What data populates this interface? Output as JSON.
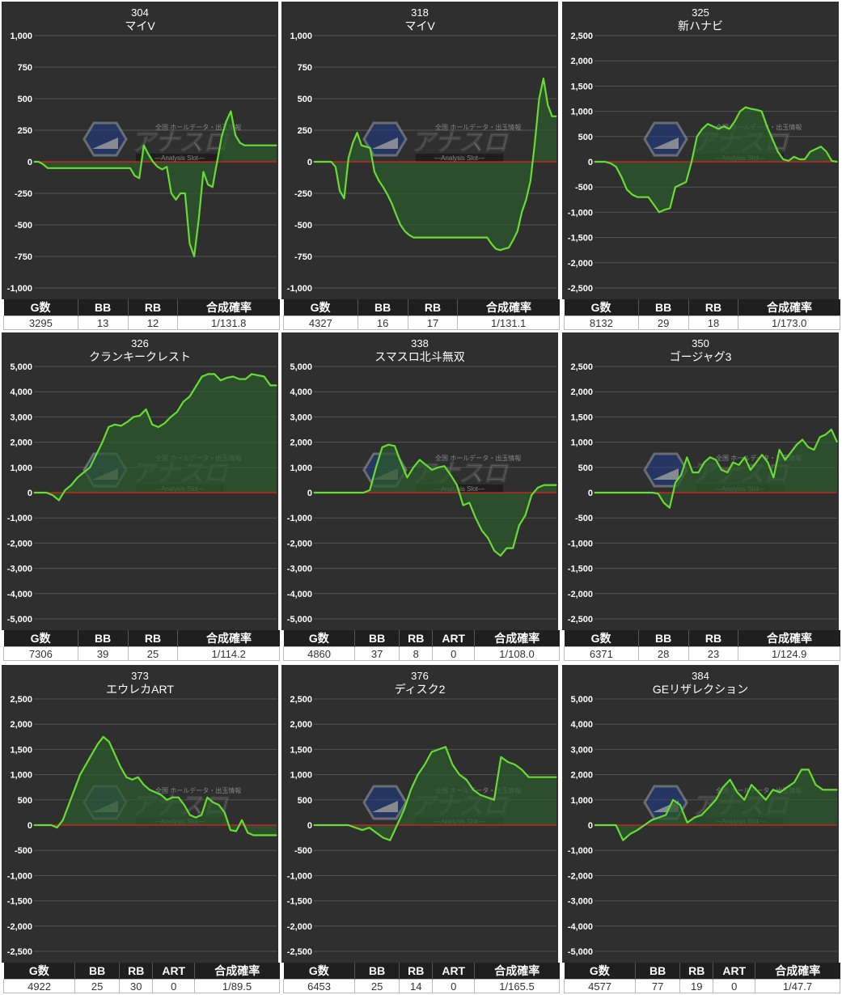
{
  "colors": {
    "panel_bg": "#2f2f2f",
    "grid": "#555555",
    "zero_line": "#e02020",
    "series_line": "#66dd33",
    "series_fill": "#2e5a2e",
    "tick_text": "#ffffff",
    "header_bg": "#1f1f1f"
  },
  "watermark": {
    "brand": "アナスロ",
    "tagline": "—Analysis Slot—",
    "small": "全国 ホールデータ・出玉情報"
  },
  "chart_data": [
    {
      "type": "area",
      "title": "304",
      "subtitle": "マイV",
      "ylim": [
        -1000,
        1000
      ],
      "yticks": [
        -1000,
        -750,
        -500,
        -250,
        0,
        250,
        500,
        750,
        1000
      ],
      "ytick_labels": [
        "-1,000",
        "-750",
        "-500",
        "-250",
        "0",
        "250",
        "500",
        "750",
        "1,000"
      ],
      "values": [
        0,
        0,
        -20,
        -50,
        -50,
        -50,
        -50,
        -50,
        -50,
        -50,
        -50,
        -50,
        -50,
        -50,
        -50,
        -50,
        -50,
        -50,
        -50,
        -50,
        -50,
        -50,
        -110,
        -130,
        130,
        60,
        0,
        -40,
        -60,
        -40,
        -250,
        -300,
        -250,
        -250,
        -650,
        -750,
        -450,
        -80,
        -180,
        -200,
        0,
        200,
        320,
        400,
        210,
        150,
        130,
        130,
        130,
        130,
        130,
        130,
        130,
        130
      ],
      "stats": {
        "headers": [
          "G数",
          "BB",
          "RB",
          "合成確率"
        ],
        "values": [
          "3295",
          "13",
          "12",
          "1/131.8"
        ]
      }
    },
    {
      "type": "area",
      "title": "318",
      "subtitle": "マイV",
      "ylim": [
        -1000,
        1000
      ],
      "yticks": [
        -1000,
        -750,
        -500,
        -250,
        0,
        250,
        500,
        750,
        1000
      ],
      "ytick_labels": [
        "-1,000",
        "-750",
        "-500",
        "-250",
        "0",
        "250",
        "500",
        "750",
        "1,000"
      ],
      "values": [
        0,
        0,
        0,
        0,
        0,
        -40,
        -230,
        -290,
        30,
        150,
        230,
        130,
        120,
        110,
        -80,
        -150,
        -200,
        -260,
        -330,
        -420,
        -500,
        -550,
        -580,
        -600,
        -600,
        -600,
        -600,
        -600,
        -600,
        -600,
        -600,
        -600,
        -600,
        -600,
        -600,
        -600,
        -600,
        -600,
        -600,
        -600,
        -600,
        -650,
        -690,
        -700,
        -690,
        -680,
        -620,
        -550,
        -400,
        -300,
        -150,
        150,
        500,
        660,
        450,
        360,
        360
      ],
      "stats": {
        "headers": [
          "G数",
          "BB",
          "RB",
          "合成確率"
        ],
        "values": [
          "4327",
          "16",
          "17",
          "1/131.1"
        ]
      }
    },
    {
      "type": "area",
      "title": "325",
      "subtitle": "新ハナビ",
      "ylim": [
        -2500,
        2500
      ],
      "yticks": [
        -2500,
        -2000,
        -1500,
        -1000,
        -500,
        0,
        500,
        1000,
        1500,
        2000,
        2500
      ],
      "ytick_labels": [
        "-2,500",
        "-2,000",
        "-1,500",
        "-1,000",
        "-500",
        "0",
        "500",
        "1,000",
        "1,500",
        "2,000",
        "2,500"
      ],
      "values": [
        0,
        0,
        0,
        -30,
        -100,
        -300,
        -550,
        -650,
        -700,
        -700,
        -700,
        -850,
        -1000,
        -950,
        -920,
        -500,
        -450,
        -400,
        0,
        500,
        650,
        750,
        700,
        650,
        700,
        650,
        800,
        1000,
        1080,
        1050,
        1030,
        1000,
        700,
        450,
        200,
        50,
        20,
        100,
        50,
        50,
        200,
        250,
        300,
        200,
        20,
        0
      ],
      "stats": {
        "headers": [
          "G数",
          "BB",
          "RB",
          "合成確率"
        ],
        "values": [
          "8132",
          "29",
          "18",
          "1/173.0"
        ]
      }
    },
    {
      "type": "area",
      "title": "326",
      "subtitle": "クランキークレスト",
      "ylim": [
        -5000,
        5000
      ],
      "yticks": [
        -5000,
        -4000,
        -3000,
        -2000,
        -1000,
        0,
        1000,
        2000,
        3000,
        4000,
        5000
      ],
      "ytick_labels": [
        "-5,000",
        "-4,000",
        "-3,000",
        "-2,000",
        "-1,000",
        "0",
        "1,000",
        "2,000",
        "3,000",
        "4,000",
        "5,000"
      ],
      "values": [
        0,
        0,
        0,
        -100,
        -300,
        100,
        300,
        600,
        800,
        1000,
        1500,
        2000,
        2600,
        2700,
        2650,
        2800,
        3000,
        3050,
        3300,
        2700,
        2600,
        2750,
        3000,
        3200,
        3600,
        3800,
        4200,
        4600,
        4700,
        4700,
        4450,
        4550,
        4600,
        4500,
        4500,
        4700,
        4650,
        4600,
        4250,
        4250
      ],
      "stats": {
        "headers": [
          "G数",
          "BB",
          "RB",
          "合成確率"
        ],
        "values": [
          "7306",
          "39",
          "25",
          "1/114.2"
        ]
      }
    },
    {
      "type": "area",
      "title": "338",
      "subtitle": "スマスロ北斗無双",
      "ylim": [
        -5000,
        5000
      ],
      "yticks": [
        -5000,
        -4000,
        -3000,
        -2000,
        -1000,
        0,
        1000,
        2000,
        3000,
        4000,
        5000
      ],
      "ytick_labels": [
        "-5,000",
        "-4,000",
        "-3,000",
        "-2,000",
        "-1,000",
        "0",
        "1,000",
        "2,000",
        "3,000",
        "4,000",
        "5,000"
      ],
      "values": [
        0,
        0,
        0,
        0,
        0,
        0,
        0,
        0,
        0,
        100,
        1000,
        1800,
        1900,
        1850,
        1200,
        600,
        1000,
        1300,
        1100,
        900,
        1000,
        1050,
        700,
        300,
        -500,
        -400,
        -1000,
        -1500,
        -1800,
        -2300,
        -2500,
        -2200,
        -2200,
        -1300,
        -900,
        -100,
        200,
        300,
        300,
        300
      ],
      "stats": {
        "headers": [
          "G数",
          "BB",
          "RB",
          "ART",
          "合成確率"
        ],
        "values": [
          "4860",
          "37",
          "8",
          "0",
          "1/108.0"
        ]
      }
    },
    {
      "type": "area",
      "title": "350",
      "subtitle": "ゴージャグ3",
      "ylim": [
        -2500,
        2500
      ],
      "yticks": [
        -2500,
        -2000,
        -1500,
        -1000,
        -500,
        0,
        500,
        1000,
        1500,
        2000,
        2500
      ],
      "ytick_labels": [
        "-2,500",
        "-2,000",
        "-1,500",
        "-1,000",
        "-500",
        "0",
        "500",
        "1,000",
        "1,500",
        "2,000",
        "2,500"
      ],
      "values": [
        0,
        0,
        0,
        0,
        0,
        0,
        0,
        0,
        0,
        0,
        0,
        -20,
        -200,
        -300,
        200,
        350,
        700,
        400,
        400,
        600,
        700,
        650,
        450,
        400,
        600,
        550,
        700,
        450,
        600,
        750,
        600,
        300,
        850,
        650,
        800,
        950,
        1050,
        900,
        850,
        1100,
        1150,
        1250,
        1000
      ],
      "stats": {
        "headers": [
          "G数",
          "BB",
          "RB",
          "合成確率"
        ],
        "values": [
          "6371",
          "28",
          "23",
          "1/124.9"
        ]
      }
    },
    {
      "type": "area",
      "title": "373",
      "subtitle": "エウレカART",
      "ylim": [
        -2500,
        2500
      ],
      "yticks": [
        -2500,
        -2000,
        -1500,
        -1000,
        -500,
        0,
        500,
        1000,
        1500,
        2000,
        2500
      ],
      "ytick_labels": [
        "-2,500",
        "-2,000",
        "-1,500",
        "-1,000",
        "-500",
        "0",
        "500",
        "1,000",
        "1,500",
        "2,000",
        "2,500"
      ],
      "values": [
        0,
        0,
        0,
        0,
        -50,
        100,
        400,
        700,
        1000,
        1200,
        1400,
        1600,
        1750,
        1650,
        1400,
        1150,
        950,
        900,
        950,
        800,
        700,
        650,
        600,
        500,
        550,
        550,
        400,
        200,
        150,
        200,
        550,
        450,
        400,
        250,
        -100,
        -120,
        100,
        -150,
        -200,
        -200,
        -200,
        -200,
        -200
      ],
      "stats": {
        "headers": [
          "G数",
          "BB",
          "RB",
          "ART",
          "合成確率"
        ],
        "values": [
          "4922",
          "25",
          "30",
          "0",
          "1/89.5"
        ]
      }
    },
    {
      "type": "area",
      "title": "376",
      "subtitle": "ディスク2",
      "ylim": [
        -2500,
        2500
      ],
      "yticks": [
        -2500,
        -2000,
        -1500,
        -1000,
        -500,
        0,
        500,
        1000,
        1500,
        2000,
        2500
      ],
      "ytick_labels": [
        "-2,500",
        "-2,000",
        "-1,500",
        "-1,000",
        "-500",
        "0",
        "500",
        "1,000",
        "1,500",
        "2,000",
        "2,500"
      ],
      "values": [
        0,
        0,
        0,
        0,
        0,
        0,
        -50,
        -100,
        -50,
        -150,
        -250,
        -300,
        0,
        300,
        700,
        1000,
        1200,
        1450,
        1500,
        1550,
        1200,
        1000,
        900,
        700,
        600,
        550,
        500,
        1350,
        1250,
        1200,
        1100,
        950,
        950,
        950,
        950,
        950
      ],
      "stats": {
        "headers": [
          "G数",
          "BB",
          "RB",
          "ART",
          "合成確率"
        ],
        "values": [
          "6453",
          "25",
          "14",
          "0",
          "1/165.5"
        ]
      }
    },
    {
      "type": "area",
      "title": "384",
      "subtitle": "GEリザレクション",
      "ylim": [
        -5000,
        5000
      ],
      "yticks": [
        -5000,
        -4000,
        -3000,
        -2000,
        -1000,
        0,
        1000,
        2000,
        3000,
        4000,
        5000
      ],
      "ytick_labels": [
        "-5,000",
        "-4,000",
        "-3,000",
        "-2,000",
        "-1,000",
        "0",
        "1,000",
        "2,000",
        "3,000",
        "4,000",
        "5,000"
      ],
      "values": [
        0,
        0,
        0,
        0,
        -600,
        -350,
        -200,
        0,
        200,
        300,
        400,
        1000,
        800,
        100,
        300,
        400,
        700,
        1000,
        1500,
        1800,
        1300,
        1000,
        1600,
        1300,
        1000,
        1400,
        1300,
        1500,
        1700,
        2200,
        2200,
        1600,
        1400,
        1400,
        1400
      ],
      "stats": {
        "headers": [
          "G数",
          "BB",
          "RB",
          "ART",
          "合成確率"
        ],
        "values": [
          "4577",
          "77",
          "19",
          "0",
          "1/47.7"
        ]
      }
    }
  ]
}
